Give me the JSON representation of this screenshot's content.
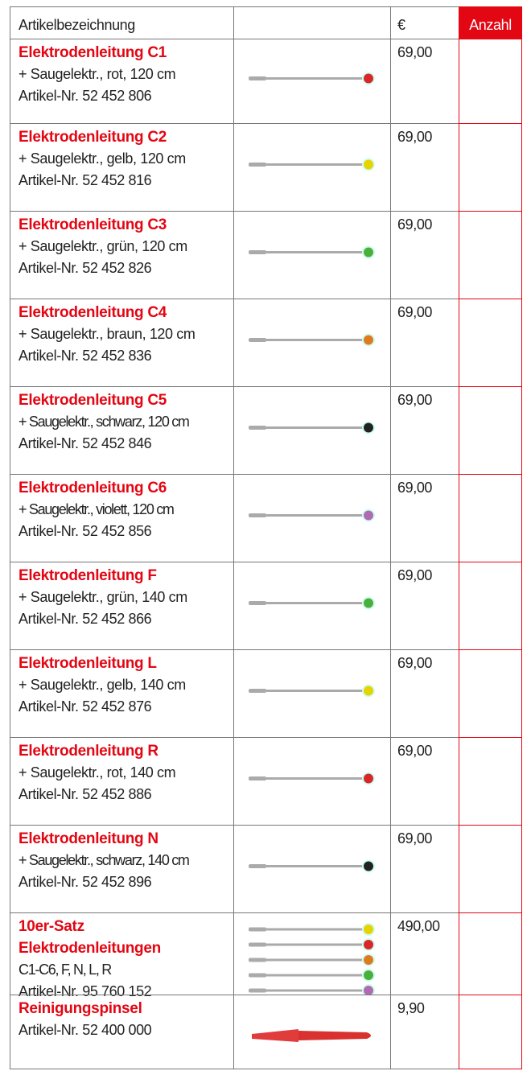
{
  "header": {
    "name": "Artikelbezeichnung",
    "price": "€",
    "quantity": "Anzahl"
  },
  "rows": [
    {
      "title": "Elektrodenleitung C1",
      "lines": [
        "+ Saugelektr., rot, 120 cm",
        "Artikel-Nr. 52 452 806"
      ],
      "price": "69,00"
    },
    {
      "title": "Elektrodenleitung C2",
      "lines": [
        "+ Saugelektr., gelb, 120 cm",
        "Artikel-Nr. 52 452 816"
      ],
      "price": "69,00"
    },
    {
      "title": "Elektrodenleitung C3",
      "lines": [
        "+ Saugelektr., grün, 120 cm",
        "Artikel-Nr. 52 452 826"
      ],
      "price": "69,00"
    },
    {
      "title": "Elektrodenleitung C4",
      "lines": [
        "+ Saugelektr., braun, 120 cm",
        "Artikel-Nr. 52 452 836"
      ],
      "price": "69,00"
    },
    {
      "title": "Elektrodenleitung C5",
      "lines": [
        "+ Saugelektr., schwarz, 120 cm",
        "Artikel-Nr. 52 452 846"
      ],
      "price": "69,00"
    },
    {
      "title": "Elektrodenleitung C6",
      "lines": [
        "+ Saugelektr., violett, 120 cm",
        "Artikel-Nr. 52 452 856"
      ],
      "price": "69,00"
    },
    {
      "title": "Elektrodenleitung F",
      "lines": [
        "+ Saugelektr., grün, 140 cm",
        "Artikel-Nr. 52 452 866"
      ],
      "price": "69,00"
    },
    {
      "title": "Elektrodenleitung L",
      "lines": [
        "+ Saugelektr., gelb, 140 cm",
        "Artikel-Nr. 52 452 876"
      ],
      "price": "69,00"
    },
    {
      "title": "Elektrodenleitung R",
      "lines": [
        "+ Saugelektr., rot, 140 cm",
        "Artikel-Nr. 52 452 886"
      ],
      "price": "69,00"
    },
    {
      "title": "Elektrodenleitung N",
      "lines": [
        "+ Saugelektr., schwarz, 140 cm",
        "Artikel-Nr. 52 452 896"
      ],
      "price": "69,00"
    },
    {
      "title": "10er-Satz Elektrodenleitungen",
      "lines": [
        "C1-C6, F, N, L, R",
        "Artikel-Nr. 95 760 152"
      ],
      "price": "490,00"
    },
    {
      "title": "Reinigungspinsel",
      "lines": [
        "Artikel-Nr. 52 400 000"
      ],
      "price": "9,90"
    }
  ]
}
